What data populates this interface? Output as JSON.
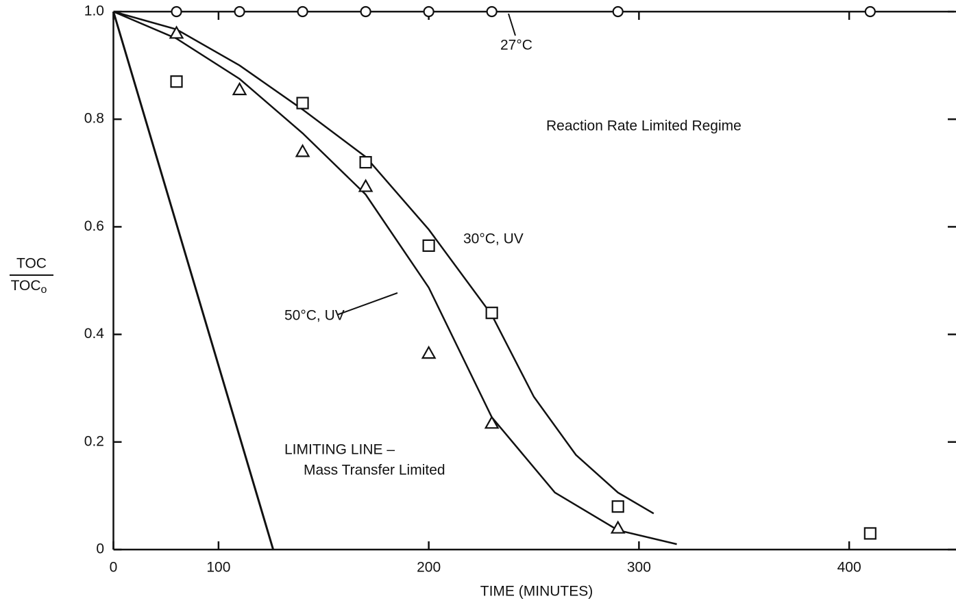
{
  "chart_data": {
    "type": "scatter",
    "x_label": "TIME (MINUTES)",
    "y_label": {
      "numerator": "TOC",
      "denominator": "TOC",
      "denominator_subscript": "o"
    },
    "xlim": [
      50,
      450
    ],
    "ylim": [
      0,
      1
    ],
    "xticks": [
      {
        "value": 50,
        "label": "0"
      },
      100,
      200,
      300,
      400
    ],
    "yticks": [
      0,
      0.2,
      0.4,
      0.6,
      0.8,
      {
        "value": 1,
        "label": "1.0"
      }
    ],
    "annotations": [
      "Reaction Rate Limited Regime"
    ],
    "series": [
      {
        "name": "27°C",
        "marker": "circle",
        "color": "#111111",
        "x": [
          80,
          110,
          140,
          170,
          200,
          230,
          290,
          410
        ],
        "values": [
          1,
          1,
          1,
          1,
          1,
          1,
          1,
          1
        ],
        "fit": {
          "x": [
            50,
            450
          ],
          "values": [
            1,
            1
          ]
        }
      },
      {
        "name": "30°C, UV",
        "marker": "square",
        "color": "#111111",
        "x": [
          80,
          140,
          170,
          200,
          230,
          290,
          410
        ],
        "values": [
          0.87,
          0.83,
          0.72,
          0.565,
          0.44,
          0.08,
          0.03
        ],
        "fit": {
          "x": [
            50,
            80,
            110,
            140,
            170,
            200,
            230,
            250,
            270,
            290,
            307
          ],
          "values": [
            1,
            0.967,
            0.9,
            0.818,
            0.73,
            0.595,
            0.436,
            0.284,
            0.176,
            0.106,
            0.067
          ]
        }
      },
      {
        "name": "50°C, UV",
        "marker": "triangle",
        "color": "#111111",
        "x": [
          80,
          110,
          140,
          170,
          200,
          230,
          290
        ],
        "values": [
          0.96,
          0.855,
          0.74,
          0.675,
          0.365,
          0.235,
          0.04
        ],
        "fit": {
          "x": [
            50,
            80,
            110,
            140,
            170,
            200,
            230,
            260,
            290,
            318
          ],
          "values": [
            1,
            0.95,
            0.875,
            0.774,
            0.66,
            0.487,
            0.246,
            0.106,
            0.036,
            0.01
          ]
        }
      }
    ],
    "limiting_line": {
      "label": [
        "LIMITING LINE –",
        "Mass Transfer Limited"
      ],
      "x": [
        50,
        126
      ],
      "values": [
        1,
        0
      ]
    }
  }
}
